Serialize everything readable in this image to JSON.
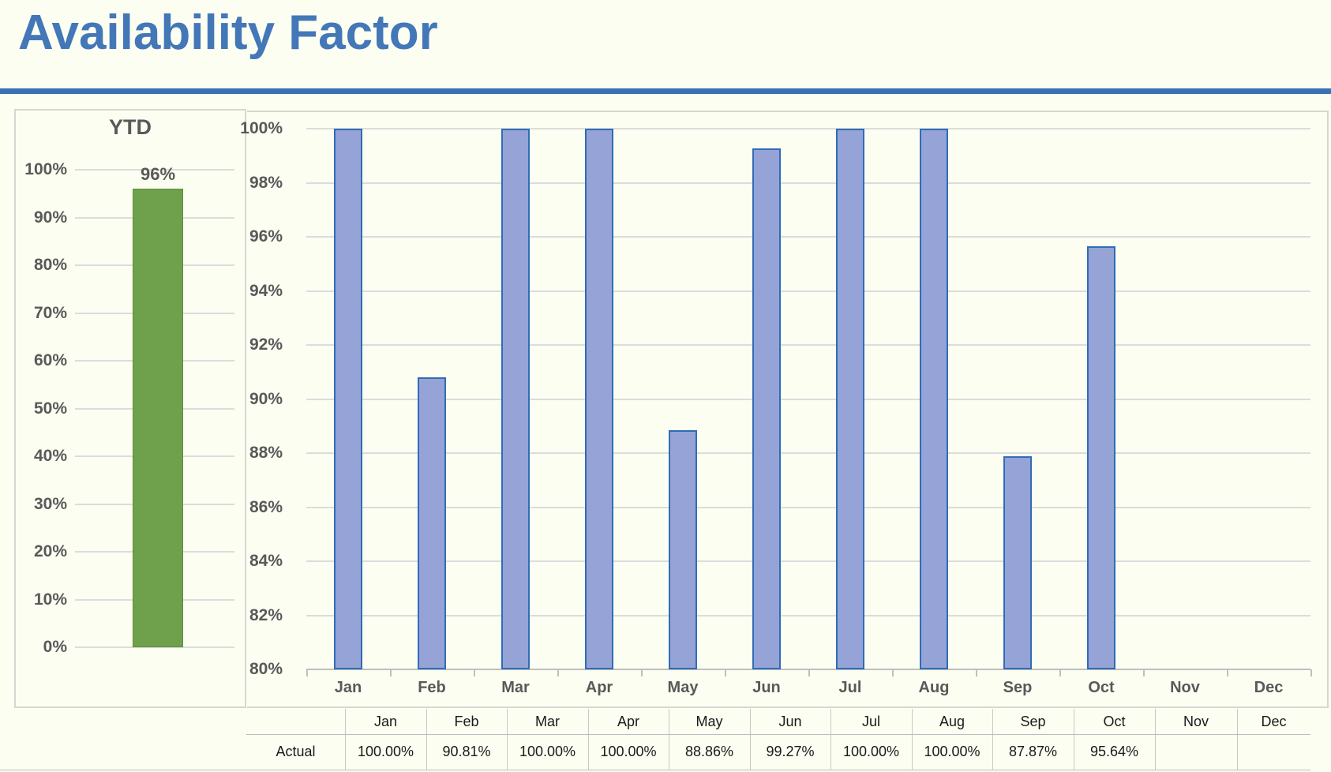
{
  "header": {
    "title": "Availability Factor"
  },
  "colors": {
    "title_blue": "#4377b8",
    "rule_blue": "#3a70b4",
    "bar_fill": "#96a3d7",
    "bar_border": "#2e6db6",
    "ytd_bar_fill": "#6fa04c",
    "ytd_bar_border": "#5e8f3e",
    "gridline": "#dcdcdc",
    "axis_line": "#bfbfbf",
    "axis_text": "#595959",
    "panel_border": "#d6d6d2",
    "background": "#fcfef2"
  },
  "chart_data": [
    {
      "name": "ytd-summary",
      "type": "bar",
      "title": "YTD",
      "categories": [
        "YTD"
      ],
      "values": [
        96
      ],
      "data_labels": [
        "96%"
      ],
      "ylim": [
        0,
        100
      ],
      "ytick_labels": [
        "100%",
        "90%",
        "80%",
        "70%",
        "60%",
        "50%",
        "40%",
        "30%",
        "20%",
        "10%",
        "0%"
      ],
      "grid": true,
      "legend": "none"
    },
    {
      "name": "monthly-availability",
      "type": "bar",
      "categories": [
        "Jan",
        "Feb",
        "Mar",
        "Apr",
        "May",
        "Jun",
        "Jul",
        "Aug",
        "Sep",
        "Oct",
        "Nov",
        "Dec"
      ],
      "series": [
        {
          "name": "Actual",
          "values": [
            100.0,
            90.81,
            100.0,
            100.0,
            88.86,
            99.27,
            100.0,
            100.0,
            87.87,
            95.64,
            null,
            null
          ]
        }
      ],
      "ylim": [
        80,
        100
      ],
      "ytick_labels": [
        "100%",
        "98%",
        "96%",
        "94%",
        "92%",
        "90%",
        "88%",
        "86%",
        "84%",
        "82%",
        "80%"
      ],
      "grid": true,
      "legend": "none"
    }
  ],
  "table": {
    "columns": [
      "Jan",
      "Feb",
      "Mar",
      "Apr",
      "May",
      "Jun",
      "Jul",
      "Aug",
      "Sep",
      "Oct",
      "Nov",
      "Dec"
    ],
    "rows": [
      {
        "label": "Actual",
        "values": [
          "100.00%",
          "90.81%",
          "100.00%",
          "100.00%",
          "88.86%",
          "99.27%",
          "100.00%",
          "100.00%",
          "87.87%",
          "95.64%",
          "",
          ""
        ]
      }
    ]
  }
}
